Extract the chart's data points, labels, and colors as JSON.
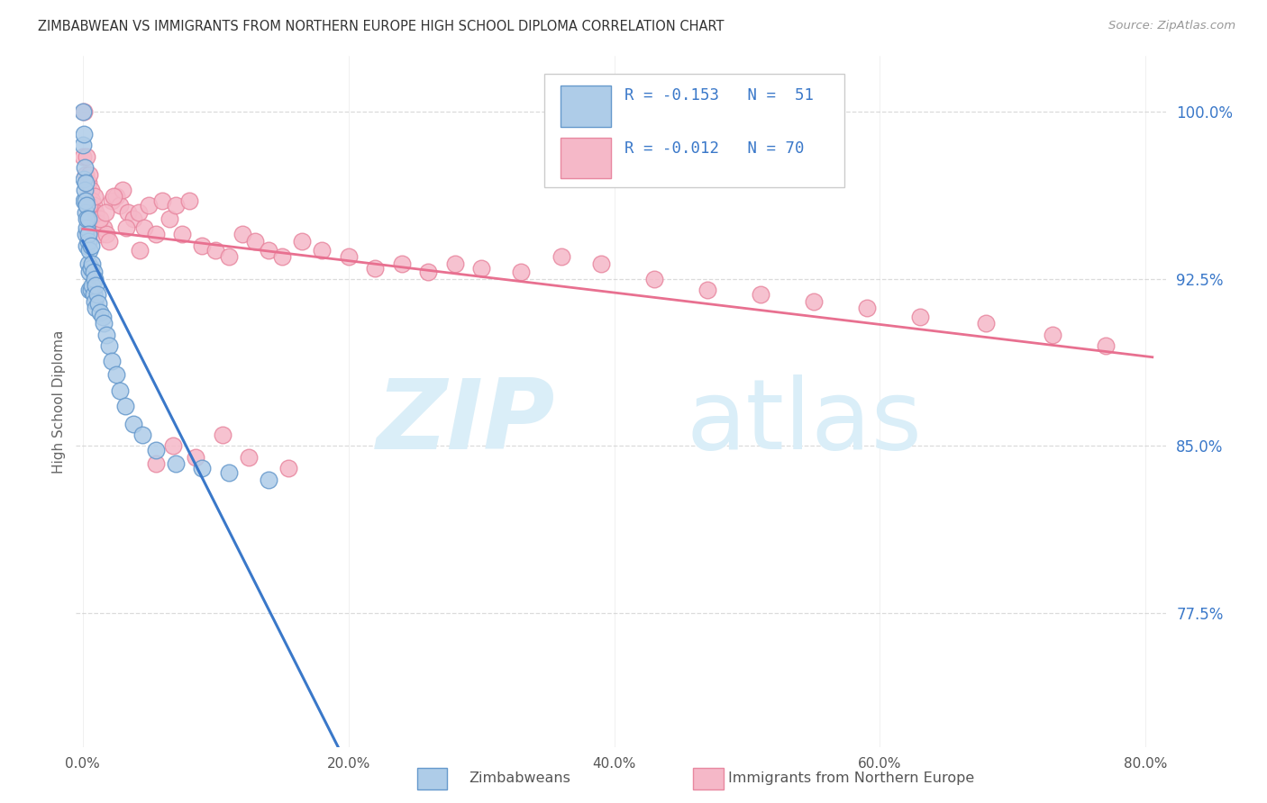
{
  "title": "ZIMBABWEAN VS IMMIGRANTS FROM NORTHERN EUROPE HIGH SCHOOL DIPLOMA CORRELATION CHART",
  "source": "Source: ZipAtlas.com",
  "ylabel": "High School Diploma",
  "x_tick_labels": [
    "0.0%",
    "20.0%",
    "40.0%",
    "60.0%",
    "80.0%"
  ],
  "x_tick_vals": [
    0.0,
    0.2,
    0.4,
    0.6,
    0.8
  ],
  "y_tick_labels_right": [
    "100.0%",
    "92.5%",
    "85.0%",
    "77.5%"
  ],
  "y_tick_vals_right": [
    1.0,
    0.925,
    0.85,
    0.775
  ],
  "xlim": [
    -0.005,
    0.815
  ],
  "ylim": [
    0.715,
    1.025
  ],
  "legend_R1": "R = -0.153",
  "legend_N1": "N =  51",
  "legend_R2": "R = -0.012",
  "legend_N2": "N = 70",
  "blue_color": "#aecce8",
  "pink_color": "#f5b8c8",
  "blue_edge": "#6699cc",
  "pink_edge": "#e888a0",
  "trend_blue_solid": "#3a78c9",
  "trend_pink_solid": "#e87090",
  "trend_blue_dash": "#99bbdd",
  "background_color": "#ffffff",
  "grid_color": "#cccccc",
  "zimbabweans_x": [
    0.0002,
    0.0005,
    0.001,
    0.001,
    0.001,
    0.0015,
    0.0015,
    0.002,
    0.002,
    0.002,
    0.0025,
    0.003,
    0.003,
    0.003,
    0.003,
    0.004,
    0.004,
    0.004,
    0.0045,
    0.005,
    0.005,
    0.005,
    0.006,
    0.006,
    0.006,
    0.007,
    0.007,
    0.008,
    0.008,
    0.009,
    0.009,
    0.01,
    0.01,
    0.011,
    0.012,
    0.013,
    0.015,
    0.016,
    0.018,
    0.02,
    0.022,
    0.025,
    0.028,
    0.032,
    0.038,
    0.045,
    0.055,
    0.07,
    0.09,
    0.11,
    0.14
  ],
  "zimbabweans_y": [
    1.0,
    0.985,
    0.97,
    0.96,
    0.99,
    0.975,
    0.965,
    0.968,
    0.955,
    0.945,
    0.96,
    0.958,
    0.948,
    0.94,
    0.952,
    0.952,
    0.942,
    0.932,
    0.945,
    0.938,
    0.928,
    0.92,
    0.94,
    0.93,
    0.92,
    0.932,
    0.922,
    0.928,
    0.918,
    0.925,
    0.915,
    0.922,
    0.912,
    0.918,
    0.914,
    0.91,
    0.908,
    0.905,
    0.9,
    0.895,
    0.888,
    0.882,
    0.875,
    0.868,
    0.86,
    0.855,
    0.848,
    0.842,
    0.84,
    0.838,
    0.835
  ],
  "northern_europe_x": [
    0.0002,
    0.001,
    0.002,
    0.003,
    0.004,
    0.005,
    0.006,
    0.007,
    0.008,
    0.01,
    0.012,
    0.014,
    0.016,
    0.018,
    0.02,
    0.022,
    0.025,
    0.028,
    0.03,
    0.034,
    0.038,
    0.042,
    0.046,
    0.05,
    0.055,
    0.06,
    0.065,
    0.07,
    0.075,
    0.08,
    0.09,
    0.1,
    0.11,
    0.12,
    0.13,
    0.14,
    0.15,
    0.165,
    0.18,
    0.2,
    0.22,
    0.24,
    0.26,
    0.28,
    0.3,
    0.33,
    0.36,
    0.39,
    0.43,
    0.47,
    0.51,
    0.55,
    0.59,
    0.63,
    0.68,
    0.73,
    0.77,
    0.005,
    0.009,
    0.013,
    0.017,
    0.023,
    0.033,
    0.043,
    0.055,
    0.068,
    0.085,
    0.105,
    0.125,
    0.155
  ],
  "northern_europe_y": [
    0.98,
    1.0,
    0.972,
    0.98,
    0.968,
    0.972,
    0.965,
    0.96,
    0.958,
    0.955,
    0.95,
    0.945,
    0.948,
    0.945,
    0.942,
    0.96,
    0.962,
    0.958,
    0.965,
    0.955,
    0.952,
    0.955,
    0.948,
    0.958,
    0.945,
    0.96,
    0.952,
    0.958,
    0.945,
    0.96,
    0.94,
    0.938,
    0.935,
    0.945,
    0.942,
    0.938,
    0.935,
    0.942,
    0.938,
    0.935,
    0.93,
    0.932,
    0.928,
    0.932,
    0.93,
    0.928,
    0.935,
    0.932,
    0.925,
    0.92,
    0.918,
    0.915,
    0.912,
    0.908,
    0.905,
    0.9,
    0.895,
    0.958,
    0.962,
    0.952,
    0.955,
    0.962,
    0.948,
    0.938,
    0.842,
    0.85,
    0.845,
    0.855,
    0.845,
    0.84
  ]
}
